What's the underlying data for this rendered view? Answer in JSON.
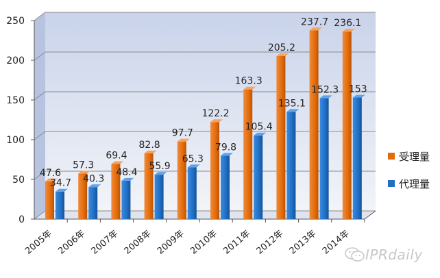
{
  "chart_data": {
    "type": "bar",
    "categories": [
      "2005年",
      "2006年",
      "2007年",
      "2008年",
      "2009年",
      "2010年",
      "2011年",
      "2012年",
      "2013年",
      "2014年"
    ],
    "series": [
      {
        "name": "受理量",
        "values": [
          47.6,
          57.3,
          69.4,
          82.8,
          97.7,
          122.2,
          163.3,
          205.2,
          237.7,
          236.1
        ],
        "color": "#e36c0a"
      },
      {
        "name": "代理量",
        "values": [
          34.7,
          40.3,
          48.4,
          55.9,
          65.3,
          79.8,
          105.4,
          135.1,
          152.3,
          153
        ],
        "color": "#1f6fc4"
      }
    ],
    "data_labels": [
      [
        "47.6",
        "57.3",
        "69.4",
        "82.8",
        "97.7",
        "122.2",
        "163.3",
        "205.2",
        "237.7",
        "236.1"
      ],
      [
        "34.7",
        "40.3",
        "48.4",
        "55.9",
        "65.3",
        "79.8",
        "105.4",
        "135.1",
        "152.3",
        "153"
      ]
    ],
    "ylim": [
      0,
      250
    ],
    "yticks": [
      0,
      50,
      100,
      150,
      200,
      250
    ],
    "ytick_labels": [
      "0",
      "50",
      "100",
      "150",
      "200",
      "250"
    ],
    "grid": true,
    "legend_position": "right",
    "title": "",
    "xlabel": "",
    "ylabel": ""
  },
  "watermark": {
    "text": "IPRdaily",
    "icon": "wechat-icon"
  }
}
